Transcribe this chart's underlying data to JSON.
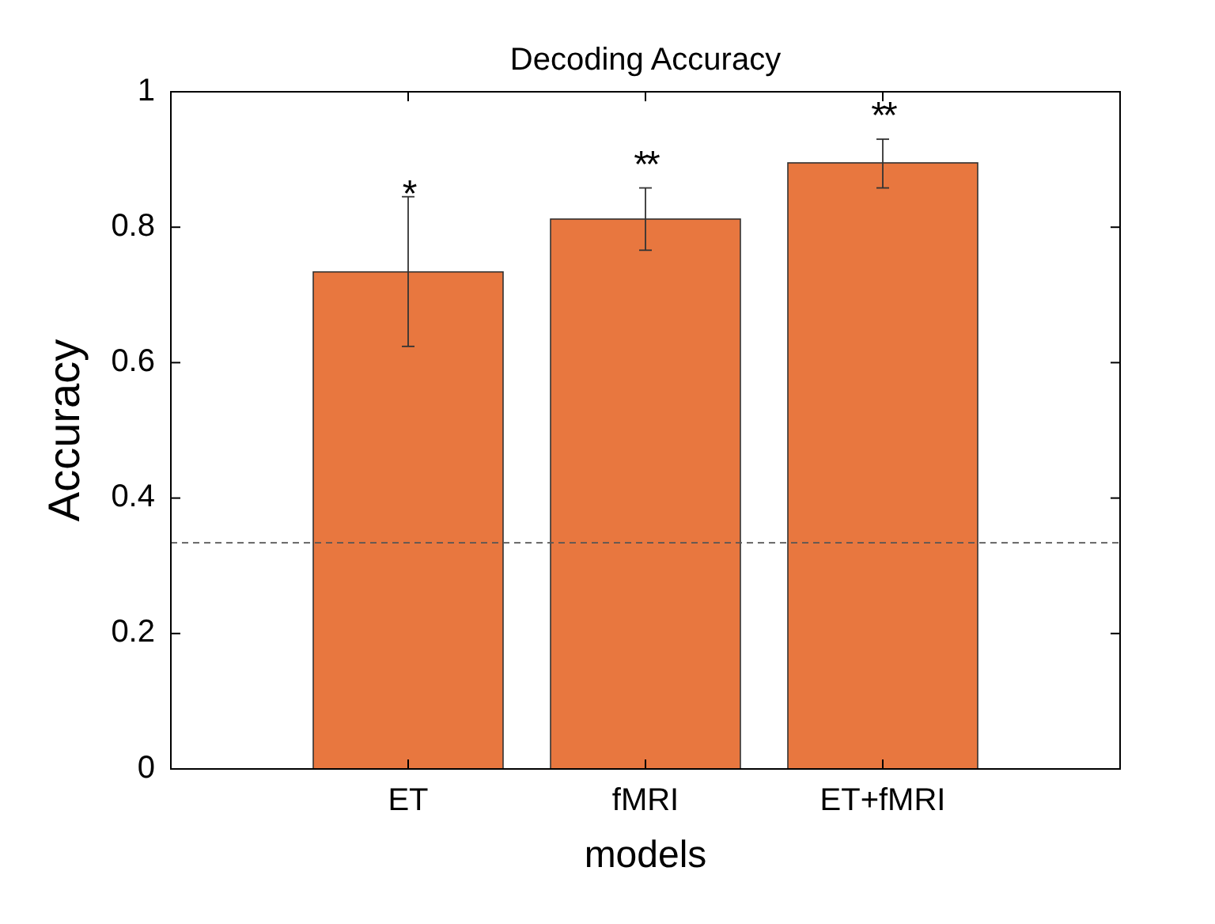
{
  "chart_data": {
    "type": "bar",
    "title": "Decoding Accuracy",
    "xlabel": "models",
    "ylabel": "Accuracy",
    "categories": [
      "ET",
      "fMRI",
      "ET+fMRI"
    ],
    "values": [
      0.734,
      0.812,
      0.895
    ],
    "color": "#e8773f",
    "errors": [
      [
        0.624,
        0.845
      ],
      [
        0.766,
        0.858
      ],
      [
        0.858,
        0.93
      ]
    ],
    "ylim": [
      0,
      1
    ],
    "yticks": [
      0,
      0.2,
      0.4,
      0.6,
      0.8,
      1
    ],
    "grid": false,
    "ref_lines": [
      {
        "axis": "y",
        "value": 0.334,
        "line_style": "dashed",
        "color": "#555555"
      }
    ],
    "annotations": [
      "*",
      "**",
      "**"
    ]
  }
}
